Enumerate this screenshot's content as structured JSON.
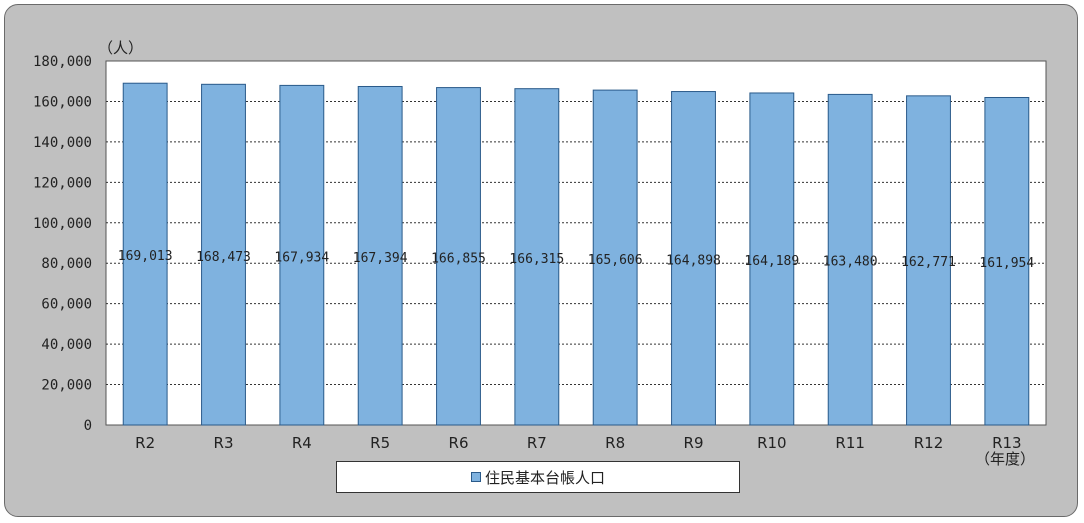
{
  "chart_data": {
    "type": "bar",
    "unit_label": "（人）",
    "x_unit_label": "（年度）",
    "categories": [
      "R2",
      "R3",
      "R4",
      "R5",
      "R6",
      "R7",
      "R8",
      "R9",
      "R10",
      "R11",
      "R12",
      "R13"
    ],
    "series": [
      {
        "name": "住民基本台帳人口",
        "values": [
          169013,
          168473,
          167934,
          167394,
          166855,
          166315,
          165606,
          164898,
          164189,
          163480,
          162771,
          161954
        ],
        "labels": [
          "169,013",
          "168,473",
          "167,934",
          "167,394",
          "166,855",
          "166,315",
          "165,606",
          "164,898",
          "164,189",
          "163,480",
          "162,771",
          "161,954"
        ]
      }
    ],
    "y_ticks": [
      "0",
      "20,000",
      "40,000",
      "60,000",
      "80,000",
      "100,000",
      "120,000",
      "140,000",
      "160,000",
      "180,000"
    ],
    "ylim": [
      0,
      180000
    ],
    "grid": true,
    "legend": "bottom",
    "colors": {
      "bar": "#7fb2df",
      "bar_edge": "#2a5a8a",
      "plot_bg": "#ffffff",
      "frame_bg": "#c0c0c0"
    }
  },
  "legend": {
    "label": "住民基本台帳人口"
  }
}
